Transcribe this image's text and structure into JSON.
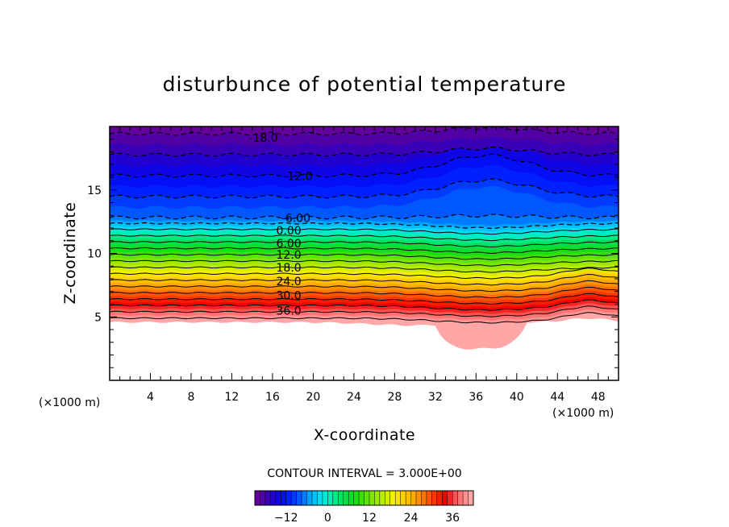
{
  "chart_data": {
    "type": "heatmap",
    "title": "disturbunce of potential temperature",
    "xlabel": "X-coordinate",
    "ylabel": "Z-coordinate",
    "x_unit": "(×1000 m)",
    "y_unit": "(×1000 m)",
    "xlim": [
      0,
      50
    ],
    "ylim": [
      0,
      20
    ],
    "x_ticks": [
      4,
      8,
      12,
      16,
      20,
      24,
      28,
      32,
      36,
      40,
      44,
      48
    ],
    "y_ticks": [
      5,
      10,
      15
    ],
    "contour_interval_text": "CONTOUR INTERVAL = 3.000E+00",
    "contour_interval": 3,
    "color_range": [
      -21,
      42
    ],
    "colorbar_ticks": [
      -12,
      0,
      12,
      24,
      36
    ],
    "contour_labels": [
      {
        "text": "-18.0",
        "x": 15.1,
        "y": 19.1
      },
      {
        "text": "-12.0",
        "x": 18.5,
        "y": 16.1
      },
      {
        "text": "-6.00",
        "x": 18.3,
        "y": 12.8
      },
      {
        "text": "0.00",
        "x": 17.6,
        "y": 11.8
      },
      {
        "text": "6.00",
        "x": 17.6,
        "y": 10.8
      },
      {
        "text": "12.0",
        "x": 17.6,
        "y": 9.9
      },
      {
        "text": "18.0",
        "x": 17.6,
        "y": 8.9
      },
      {
        "text": "24.0",
        "x": 17.6,
        "y": 7.8
      },
      {
        "text": "30.0",
        "x": 17.6,
        "y": 6.7
      },
      {
        "text": "36.0",
        "x": 17.6,
        "y": 5.5
      }
    ],
    "features": {
      "lower_boundary_z": 4.6,
      "warm_bulge": {
        "x_range": [
          33,
          40
        ],
        "bottom_z": 2.6
      },
      "upper_bump": {
        "x_center": 37,
        "amplitude_z": 1.6
      }
    }
  }
}
